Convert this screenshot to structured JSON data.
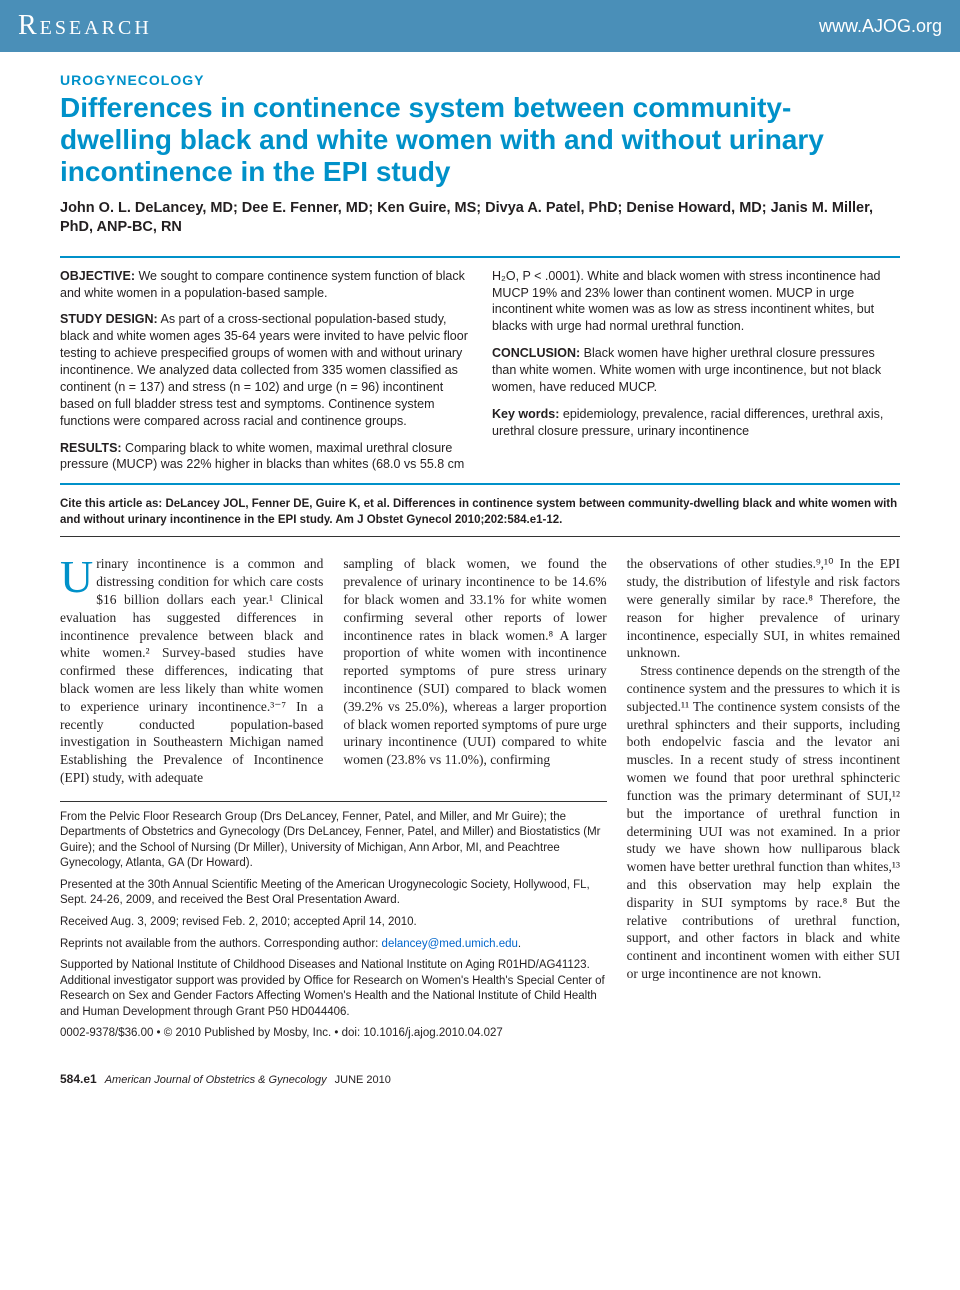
{
  "header": {
    "left": "Research",
    "right": "www.AJOG.org"
  },
  "section_label": "UROGYNECOLOGY",
  "title": "Differences in continence system between community-dwelling black and white women with and without urinary incontinence in the EPI study",
  "authors": "John O. L. DeLancey, MD; Dee E. Fenner, MD; Ken Guire, MS; Divya A. Patel, PhD; Denise Howard, MD; Janis M. Miller, PhD, ANP-BC, RN",
  "abstract": {
    "objective_label": "OBJECTIVE:",
    "objective": " We sought to compare continence system function of black and white women in a population-based sample.",
    "design_label": "STUDY DESIGN:",
    "design": " As part of a cross-sectional population-based study, black and white women ages 35-64 years were invited to have pelvic floor testing to achieve prespecified groups of women with and without urinary incontinence. We analyzed data collected from 335 women classified as continent (n = 137) and stress (n = 102) and urge (n = 96) incontinent based on full bladder stress test and symptoms. Continence system functions were compared across racial and continence groups.",
    "results_label": "RESULTS:",
    "results": " Comparing black to white women, maximal urethral closure pressure (MUCP) was 22% higher in blacks than whites (68.0 vs 55.8 cm H₂O, P < .0001). White and black women with stress incontinence had MUCP 19% and 23% lower than continent women. MUCP in urge incontinent white women was as low as stress incontinent whites, but blacks with urge had normal urethral function.",
    "conclusion_label": "CONCLUSION:",
    "conclusion": " Black women have higher urethral closure pressures than white women. White women with urge incontinence, but not black women, have reduced MUCP.",
    "keywords_label": "Key words:",
    "keywords": " epidemiology, prevalence, racial differences, urethral axis, urethral closure pressure, urinary incontinence"
  },
  "citation": "Cite this article as: DeLancey JOL, Fenner DE, Guire K, et al. Differences in continence system between community-dwelling black and white women with and without urinary incontinence in the EPI study. Am J Obstet Gynecol 2010;202:584.e1-12.",
  "body": {
    "col1": "rinary incontinence is a common and distressing condition for which care costs $16 billion dollars each year.¹ Clinical evaluation has suggested differences in incontinence prevalence between black and white women.² Survey-based studies have confirmed these differences, indicating that black women are less likely than white women to experience urinary incontinence.³⁻⁷ In a recently conducted population-based investigation in Southeastern Michigan named Establishing the Prevalence of Incontinence (EPI) study, with adequate",
    "col2": "sampling of black women, we found the prevalence of urinary incontinence to be 14.6% for black women and 33.1% for white women confirming several other reports of lower incontinence rates in black women.⁸ A larger proportion of white women with incontinence reported symptoms of pure stress urinary incontinence (SUI) compared to black women (39.2% vs 25.0%), whereas a larger proportion of black women reported symptoms of pure urge urinary incontinence (UUI) compared to white women (23.8% vs 11.0%), confirming",
    "col3a": "the observations of other studies.⁹,¹⁰ In the EPI study, the distribution of lifestyle and risk factors were generally similar by race.⁸ Therefore, the reason for higher prevalence of urinary incontinence, especially SUI, in whites remained unknown.",
    "col3b": "Stress continence depends on the strength of the continence system and the pressures to which it is subjected.¹¹ The continence system consists of the urethral sphincters and their supports, including both endopelvic fascia and the levator ani muscles. In a recent study of stress incontinent women we found that poor urethral sphincteric function was the primary determinant of SUI,¹² but the importance of urethral function in determining UUI was not examined. In a prior study we have shown how nulliparous black women have better urethral function than whites,¹³ and this observation may help explain the disparity in SUI symptoms by race.⁸ But the relative contributions of urethral function, support, and other factors in black and white continent and incontinent women with either SUI or urge incontinence are not known."
  },
  "affiliations": {
    "p1": "From the Pelvic Floor Research Group (Drs DeLancey, Fenner, Patel, and Miller, and Mr Guire); the Departments of Obstetrics and Gynecology (Drs DeLancey, Fenner, Patel, and Miller) and Biostatistics (Mr Guire); and the School of Nursing (Dr Miller), University of Michigan, Ann Arbor, MI, and Peachtree Gynecology, Atlanta, GA (Dr Howard).",
    "p2": "Presented at the 30th Annual Scientific Meeting of the American Urogynecologic Society, Hollywood, FL, Sept. 24-26, 2009, and received the Best Oral Presentation Award.",
    "p3": "Received Aug. 3, 2009; revised Feb. 2, 2010; accepted April 14, 2010.",
    "p4a": "Reprints not available from the authors. Corresponding author: ",
    "p4_email": "delancey@med.umich.edu",
    "p5": "Supported by National Institute of Childhood Diseases and National Institute on Aging R01HD/AG41123. Additional investigator support was provided by Office for Research on Women's Health's Special Center of Research on Sex and Gender Factors Affecting Women's Health and the National Institute of Child Health and Human Development through Grant P50 HD044406.",
    "p6": "0002-9378/$36.00 • © 2010 Published by Mosby, Inc. • doi: 10.1016/j.ajog.2010.04.027"
  },
  "footer": {
    "page": "584.e1",
    "journal": "American Journal of Obstetrics & Gynecology",
    "date": "JUNE 2010"
  },
  "colors": {
    "header_bg": "#4a8fb8",
    "accent": "#0091c9",
    "link": "#0066cc",
    "text": "#231f20"
  }
}
